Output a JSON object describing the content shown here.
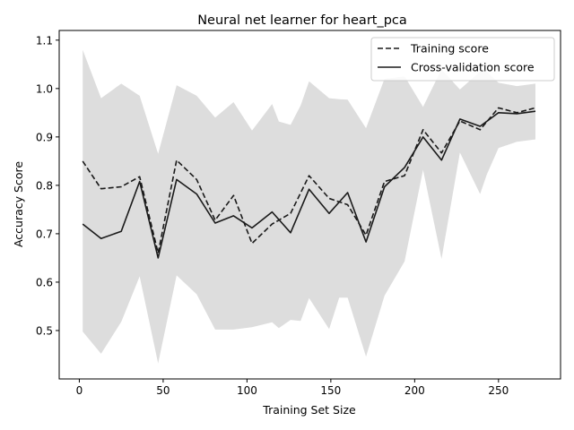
{
  "chart_data": {
    "type": "line",
    "title": "Neural net learner for heart_pca",
    "xlabel": "Training Set Size",
    "ylabel": "Accuracy Score",
    "xlim": [
      -12,
      287
    ],
    "ylim": [
      0.4,
      1.12
    ],
    "xticks": [
      0,
      50,
      100,
      150,
      200,
      250
    ],
    "yticks": [
      0.5,
      0.6,
      0.7,
      0.8,
      0.9,
      1.0,
      1.1
    ],
    "xtick_labels": [
      "0",
      "50",
      "100",
      "150",
      "200",
      "250"
    ],
    "ytick_labels": [
      "0.5",
      "0.6",
      "0.7",
      "0.8",
      "0.9",
      "1.0",
      "1.1"
    ],
    "legend_position": "top-right",
    "x": [
      2,
      13,
      25,
      36,
      47,
      58,
      70,
      81,
      92,
      103,
      115,
      126,
      137,
      149,
      160,
      171,
      182,
      194,
      205,
      216,
      227,
      239,
      250,
      261,
      272
    ],
    "series": [
      {
        "name": "Training score",
        "style": "dashed",
        "color": "#1a1a1a",
        "values": [
          0.85,
          0.793,
          0.797,
          0.818,
          0.66,
          0.852,
          0.812,
          0.728,
          0.779,
          0.68,
          0.72,
          0.742,
          0.82,
          0.773,
          0.76,
          0.697,
          0.808,
          0.82,
          0.915,
          0.867,
          0.933,
          0.915,
          0.96,
          0.95,
          0.96
        ]
      },
      {
        "name": "Cross-validation score",
        "style": "solid",
        "color": "#1a1a1a",
        "values": [
          0.72,
          0.69,
          0.705,
          0.808,
          0.65,
          0.812,
          0.782,
          0.722,
          0.737,
          0.712,
          0.745,
          0.702,
          0.792,
          0.742,
          0.785,
          0.683,
          0.797,
          0.837,
          0.9,
          0.852,
          0.937,
          0.922,
          0.95,
          0.948,
          0.953
        ]
      }
    ],
    "band": {
      "color": "#dddddd",
      "x": [
        2,
        13,
        25,
        36,
        47,
        58,
        70,
        81,
        92,
        103,
        115,
        119,
        126,
        132,
        137,
        149,
        155,
        160,
        171,
        182,
        194,
        205,
        216,
        227,
        239,
        243,
        250,
        261,
        272
      ],
      "upper": [
        1.08,
        0.98,
        1.01,
        0.985,
        0.865,
        1.007,
        0.985,
        0.94,
        0.972,
        0.913,
        0.968,
        0.932,
        0.925,
        0.965,
        1.015,
        0.98,
        0.978,
        0.977,
        0.918,
        1.02,
        1.025,
        0.962,
        1.04,
        0.998,
        1.035,
        1.035,
        1.012,
        1.005,
        1.01
      ],
      "lower": [
        0.498,
        0.452,
        0.518,
        0.612,
        0.432,
        0.614,
        0.575,
        0.502,
        0.502,
        0.507,
        0.517,
        0.505,
        0.522,
        0.52,
        0.567,
        0.503,
        0.568,
        0.568,
        0.446,
        0.572,
        0.643,
        0.832,
        0.648,
        0.868,
        0.782,
        0.822,
        0.877,
        0.89,
        0.895
      ]
    }
  }
}
